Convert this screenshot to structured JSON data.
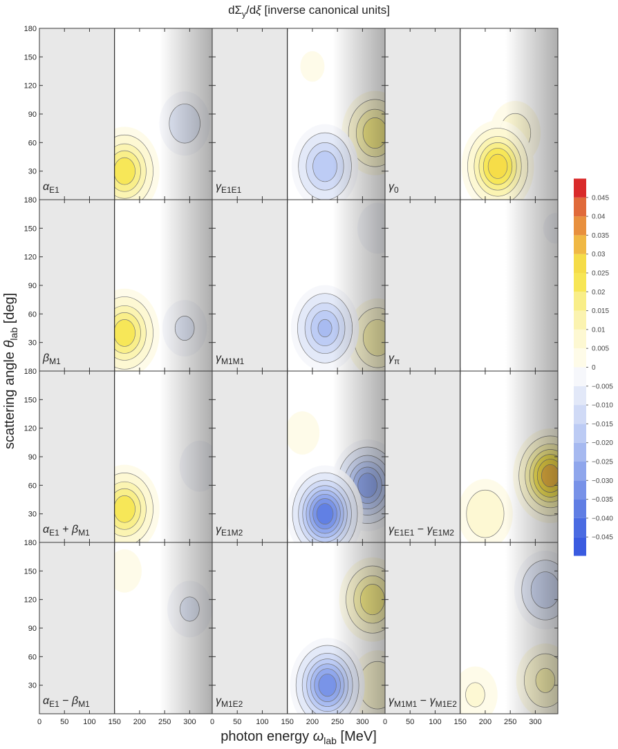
{
  "chart_data": {
    "type": "contour-grid",
    "title": [
      {
        "t": "dΣ",
        "sub": "y"
      },
      {
        "t": "/d"
      },
      {
        "t": "ξ",
        "italic": true
      },
      {
        "t": " [inverse canonical units]"
      }
    ],
    "xlabel": [
      {
        "t": "photon energy "
      },
      {
        "t": "ω",
        "italic": true,
        "sub": "lab"
      },
      {
        "t": " [MeV]"
      }
    ],
    "ylabel": [
      {
        "t": "scattering angle "
      },
      {
        "t": "θ",
        "italic": true,
        "sub": "lab"
      },
      {
        "t": " [deg]"
      }
    ],
    "xlim": [
      0,
      345
    ],
    "ylim": [
      0,
      180
    ],
    "xticks": [
      0,
      50,
      100,
      150,
      200,
      250,
      300
    ],
    "yticks": [
      30,
      60,
      90,
      120,
      150,
      180
    ],
    "boundary": 150,
    "fade_start": 240,
    "colorbar": {
      "clim": [
        -0.05,
        0.05
      ],
      "colors": [
        "#3a5be0",
        "#4a6be2",
        "#607ee4",
        "#7892e8",
        "#8fa6ec",
        "#a6b9f0",
        "#bccbf4",
        "#d0daf6",
        "#e2e8f8",
        "#f6f7fb",
        "#fefbe8",
        "#fdf8d2",
        "#fbf3b0",
        "#f9ee88",
        "#f7e655",
        "#f5dc48",
        "#f0b844",
        "#e8903e",
        "#e06a3a",
        "#d92a2a"
      ],
      "ticks": [
        0.045,
        0.04,
        0.035,
        0.03,
        0.025,
        0.02,
        0.015,
        0.01,
        0.005,
        0,
        {
          "value": -0.005,
          "label": "−0.005"
        },
        {
          "value": -0.01,
          "label": "−0.010"
        },
        {
          "value": -0.015,
          "label": "−0.015"
        },
        {
          "value": -0.02,
          "label": "−0.020"
        },
        {
          "value": -0.025,
          "label": "−0.025"
        },
        {
          "value": -0.03,
          "label": "−0.030"
        },
        {
          "value": -0.035,
          "label": "−0.035"
        },
        {
          "value": -0.04,
          "label": "−0.040"
        },
        {
          "value": -0.045,
          "label": "−0.045"
        }
      ]
    },
    "panels": [
      {
        "label": [
          {
            "t": "α",
            "sub": "E1"
          }
        ],
        "features": [
          {
            "x": 170,
            "y": 30,
            "v": 0.025
          },
          {
            "x": 290,
            "y": 80,
            "v": -0.008
          }
        ]
      },
      {
        "label": [
          {
            "t": "γ",
            "sub": "E1E1"
          }
        ],
        "features": [
          {
            "x": 200,
            "y": 140,
            "v": 0.003
          },
          {
            "x": 325,
            "y": 70,
            "v": 0.02
          },
          {
            "x": 225,
            "y": 35,
            "v": -0.02
          }
        ]
      },
      {
        "label": [
          {
            "t": "γ",
            "sub": "0"
          }
        ],
        "features": [
          {
            "x": 260,
            "y": 70,
            "v": 0.008
          },
          {
            "x": 225,
            "y": 35,
            "v": 0.03
          }
        ]
      },
      {
        "label": [
          {
            "t": "β",
            "sub": "M1"
          }
        ],
        "features": [
          {
            "x": 170,
            "y": 40,
            "v": 0.025
          },
          {
            "x": 290,
            "y": 45,
            "v": -0.006
          }
        ]
      },
      {
        "label": [
          {
            "t": "γ",
            "sub": "M1M1"
          }
        ],
        "features": [
          {
            "x": 330,
            "y": 150,
            "v": -0.005
          },
          {
            "x": 330,
            "y": 35,
            "v": 0.015
          },
          {
            "x": 225,
            "y": 45,
            "v": -0.022
          }
        ]
      },
      {
        "label": [
          {
            "t": "γ",
            "sub": "π"
          }
        ],
        "features": [
          {
            "x": 220,
            "y": 160,
            "v": -0.002
          },
          {
            "x": 340,
            "y": 150,
            "v": -0.003
          }
        ]
      },
      {
        "label": [
          {
            "t": "α",
            "sub": "E1"
          },
          {
            "t": " + "
          },
          {
            "t": "β",
            "sub": "M1"
          }
        ],
        "features": [
          {
            "x": 170,
            "y": 35,
            "v": 0.025
          },
          {
            "x": 320,
            "y": 80,
            "v": -0.005
          }
        ]
      },
      {
        "label": [
          {
            "t": "γ",
            "sub": "E1M2"
          }
        ],
        "features": [
          {
            "x": 180,
            "y": 115,
            "v": 0.004
          },
          {
            "x": 310,
            "y": 60,
            "v": -0.03
          },
          {
            "x": 225,
            "y": 30,
            "v": -0.04
          }
        ]
      },
      {
        "label": [
          {
            "t": "γ",
            "sub": "E1E1"
          },
          {
            "t": " − "
          },
          {
            "t": "γ",
            "sub": "E1M2"
          }
        ],
        "features": [
          {
            "x": 200,
            "y": 30,
            "v": 0.01
          },
          {
            "x": 330,
            "y": 70,
            "v": 0.035
          }
        ]
      },
      {
        "label": [
          {
            "t": "α",
            "sub": "E1"
          },
          {
            "t": " − "
          },
          {
            "t": "β",
            "sub": "M1"
          }
        ],
        "features": [
          {
            "x": 170,
            "y": 150,
            "v": 0.004
          },
          {
            "x": 300,
            "y": 110,
            "v": -0.006
          }
        ]
      },
      {
        "label": [
          {
            "t": "γ",
            "sub": "M1E2"
          }
        ],
        "features": [
          {
            "x": 330,
            "y": 30,
            "v": 0.01
          },
          {
            "x": 320,
            "y": 120,
            "v": 0.02
          },
          {
            "x": 230,
            "y": 30,
            "v": -0.035
          }
        ]
      },
      {
        "label": [
          {
            "t": "γ",
            "sub": "M1M1"
          },
          {
            "t": " − "
          },
          {
            "t": "γ",
            "sub": "M1E2"
          }
        ],
        "features": [
          {
            "x": 180,
            "y": 20,
            "v": 0.006
          },
          {
            "x": 320,
            "y": 35,
            "v": 0.012
          },
          {
            "x": 320,
            "y": 130,
            "v": -0.015
          }
        ]
      }
    ]
  }
}
